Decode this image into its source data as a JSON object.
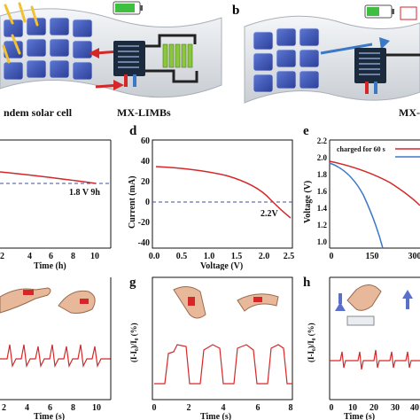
{
  "top": {
    "caption_left": "ndem solar cell",
    "caption_mid": "MX-LIMBs",
    "caption_right": "MX-",
    "letter_b": "b"
  },
  "colors": {
    "red": "#d62728",
    "blue": "#3b78c6",
    "dashed": "#3b4fa0",
    "solar": "#3d57b8",
    "electrode": "#8cc63f"
  },
  "panels": {
    "c": {
      "xlabel": "Time (h)",
      "xticks": [
        "2",
        "4",
        "6",
        "8",
        "10"
      ],
      "annotation": "1.8 V 9h"
    },
    "d": {
      "letter": "d",
      "ylabel": "Current (mA)",
      "xlabel": "Voltage (V)",
      "yticks": [
        "60",
        "40",
        "20",
        "0",
        "-20",
        "-40",
        "-60"
      ],
      "xticks": [
        "0.0",
        "0.5",
        "1.0",
        "1.5",
        "2.0",
        "2.5"
      ],
      "annotation": "2.2V"
    },
    "e": {
      "letter": "e",
      "ylabel": "Voltage (V)",
      "xlabel": "",
      "yticks": [
        "2.2",
        "2.0",
        "1.8",
        "1.6",
        "1.4",
        "1.2",
        "1.0"
      ],
      "xticks": [
        "0",
        "150",
        "300"
      ],
      "legend": "charged for 60 s"
    },
    "f": {
      "xlabel": "Time (s)",
      "xticks": [
        "2",
        "4",
        "6",
        "8",
        "10"
      ]
    },
    "g": {
      "letter": "g",
      "ylabel": "(I-I₀)/I₀ (%)",
      "xlabel": "Time (s)",
      "xticks": [
        "0",
        "2",
        "4",
        "6",
        "8"
      ]
    },
    "h": {
      "letter": "h",
      "ylabel": "(I-I₀)/I₀ (%)",
      "xlabel": "Time (s)",
      "xticks": [
        "0",
        "10",
        "20",
        "30",
        "40"
      ]
    }
  },
  "chart_data": [
    {
      "type": "line",
      "panel": "c",
      "xlabel": "Time (h)",
      "x": [
        0,
        2,
        4,
        6,
        8,
        9
      ],
      "y": [
        2.0,
        1.95,
        1.9,
        1.86,
        1.82,
        1.8
      ],
      "xlim": [
        0,
        10
      ],
      "reference_line": 1.8,
      "annotation": "1.8 V 9h"
    },
    {
      "type": "line",
      "panel": "d",
      "xlabel": "Voltage (V)",
      "ylabel": "Current (mA)",
      "x": [
        0.0,
        0.5,
        1.0,
        1.5,
        1.8,
        2.0,
        2.2,
        2.4
      ],
      "y": [
        46,
        44,
        40,
        33,
        25,
        15,
        0,
        -15
      ],
      "xlim": [
        0,
        2.5
      ],
      "ylim": [
        -60,
        60
      ],
      "reference_line": 0,
      "annotation": "2.2V"
    },
    {
      "type": "line",
      "panel": "e",
      "ylabel": "Voltage (V)",
      "xlim": [
        0,
        300
      ],
      "ylim": [
        1.0,
        2.2
      ],
      "series": [
        {
          "name": "charged for 60 s",
          "x": [
            0,
            50,
            100,
            150,
            200,
            250,
            300
          ],
          "y": [
            1.93,
            1.88,
            1.8,
            1.7,
            1.58,
            1.42,
            1.28
          ]
        },
        {
          "x": [
            0,
            50,
            100,
            140,
            170
          ],
          "y": [
            1.9,
            1.76,
            1.55,
            1.28,
            1.0
          ]
        }
      ]
    },
    {
      "type": "line",
      "panel": "f",
      "xlabel": "Time (s)",
      "xlim": [
        0,
        10
      ],
      "pattern": "periodic spikes, ~8 peaks"
    },
    {
      "type": "line",
      "panel": "g",
      "xlabel": "Time (s)",
      "ylabel": "(I-I₀)/I₀ (%)",
      "xlim": [
        0,
        8
      ],
      "pattern": "4 plateau pulses"
    },
    {
      "type": "line",
      "panel": "h",
      "xlabel": "Time (s)",
      "ylabel": "(I-I₀)/I₀ (%)",
      "xlim": [
        0,
        40
      ],
      "pattern": "biphasic spikes"
    }
  ]
}
